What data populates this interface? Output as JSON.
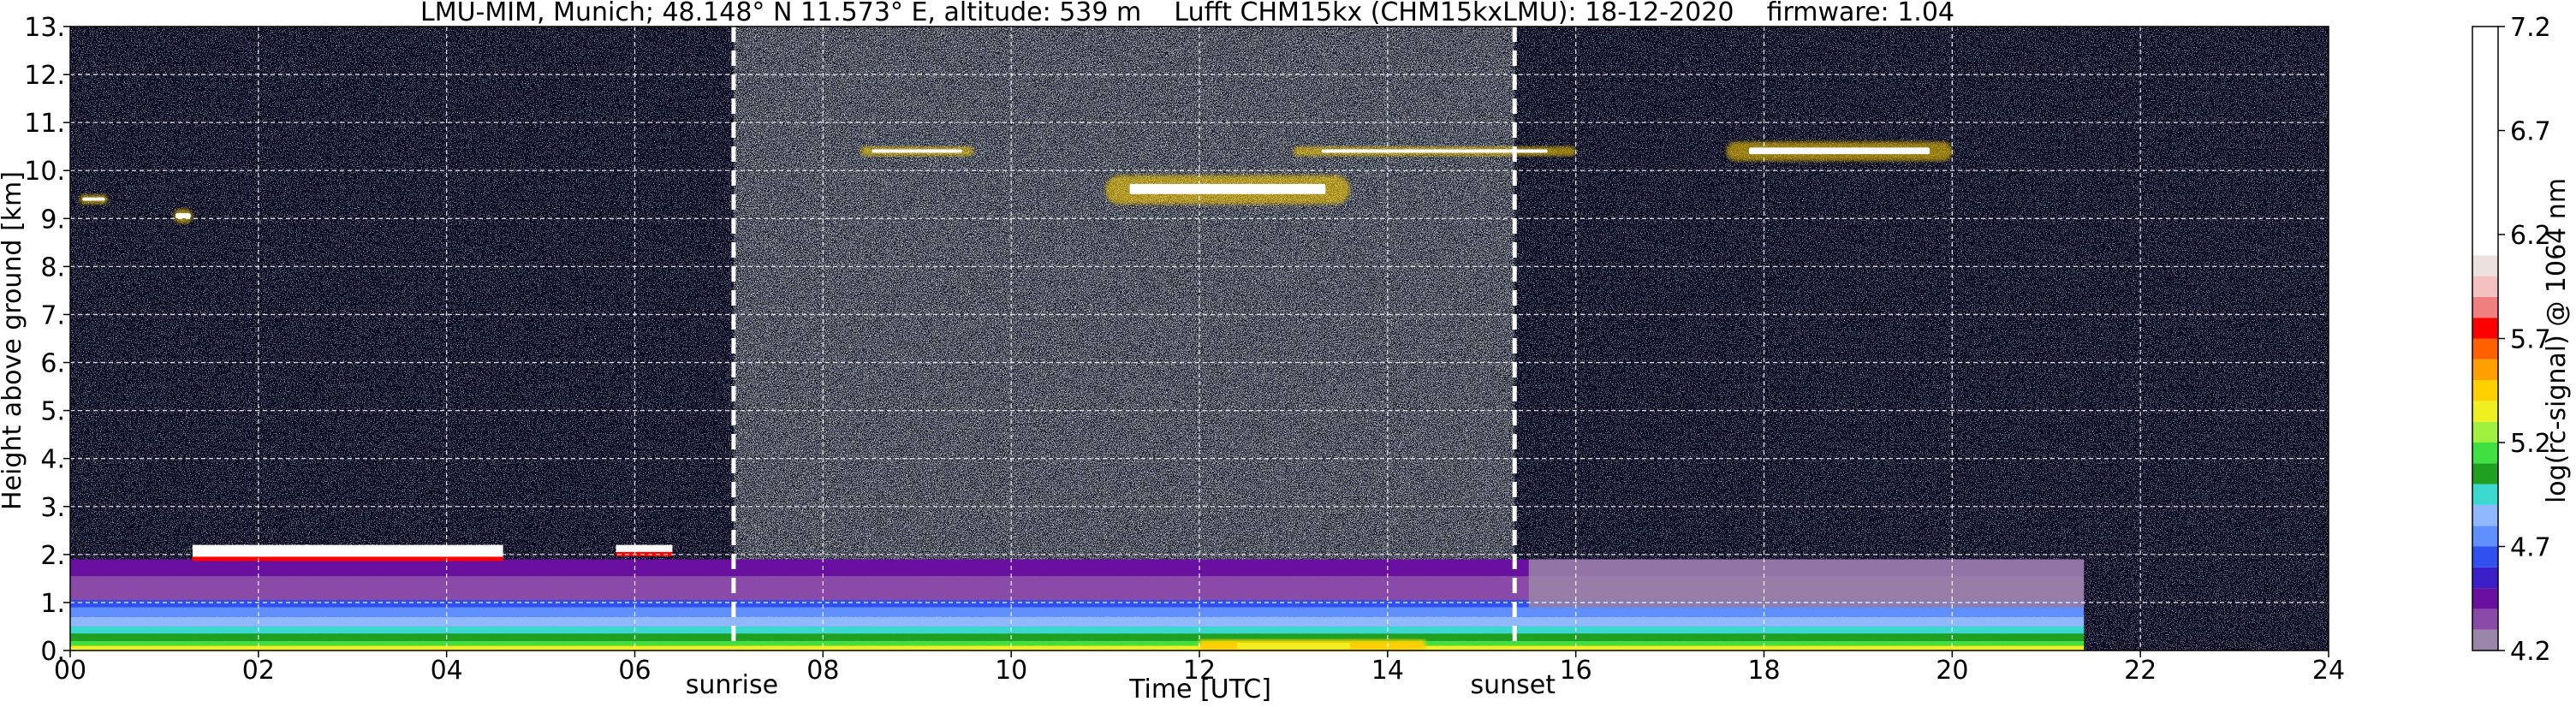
{
  "chart_data": {
    "type": "heatmap",
    "title": "LMU-MIM, Munich; 48.148° N 11.573° E, altitude: 539 m    Lufft CHM15kx (CHM15kxLMU): 18-12-2020    firmware: 1.04",
    "xlabel": "Time [UTC]",
    "ylabel": "Height above ground [km]",
    "x_range": [
      0,
      24
    ],
    "y_range": [
      0,
      13
    ],
    "x_ticks": [
      0,
      2,
      4,
      6,
      8,
      10,
      12,
      14,
      16,
      18,
      20,
      22,
      24
    ],
    "x_tick_labels": [
      "00",
      "02",
      "04",
      "06",
      "08",
      "10",
      "12",
      "14",
      "16",
      "18",
      "20",
      "22",
      "24"
    ],
    "y_ticks": [
      0,
      1,
      2,
      3,
      4,
      5,
      6,
      7,
      8,
      9,
      10,
      11,
      12,
      13
    ],
    "y_tick_labels": [
      "0.",
      "1.",
      "2.",
      "3.",
      "4.",
      "5.",
      "6.",
      "7.",
      "8.",
      "9.",
      "10.",
      "11.",
      "12.",
      "13."
    ],
    "grid": true,
    "events": [
      {
        "label": "sunrise",
        "time": 7.05
      },
      {
        "label": "sunset",
        "time": 15.35
      }
    ],
    "colorbar": {
      "label": "log(rc-signal) @ 1064 nm",
      "range": [
        4.2,
        7.2
      ],
      "ticks": [
        4.2,
        4.7,
        5.2,
        5.7,
        6.2,
        6.7,
        7.2
      ],
      "tick_labels": [
        "4.2",
        "4.7",
        "5.2",
        "5.7",
        "6.2",
        "6.7",
        "7.2"
      ],
      "bands": [
        {
          "from": 4.2,
          "to": 4.3,
          "color": "#9a86a8"
        },
        {
          "from": 4.3,
          "to": 4.4,
          "color": "#8a4aa8"
        },
        {
          "from": 4.4,
          "to": 4.5,
          "color": "#6a10a0"
        },
        {
          "from": 4.5,
          "to": 4.6,
          "color": "#3a20c8"
        },
        {
          "from": 4.6,
          "to": 4.7,
          "color": "#3050f0"
        },
        {
          "from": 4.7,
          "to": 4.8,
          "color": "#6090ff"
        },
        {
          "from": 4.8,
          "to": 4.9,
          "color": "#90b8ff"
        },
        {
          "from": 4.9,
          "to": 5.0,
          "color": "#3cd8d0"
        },
        {
          "from": 5.0,
          "to": 5.1,
          "color": "#20a020"
        },
        {
          "from": 5.1,
          "to": 5.2,
          "color": "#40e040"
        },
        {
          "from": 5.2,
          "to": 5.3,
          "color": "#a0f040"
        },
        {
          "from": 5.3,
          "to": 5.4,
          "color": "#f0f020"
        },
        {
          "from": 5.4,
          "to": 5.5,
          "color": "#ffd000"
        },
        {
          "from": 5.5,
          "to": 5.6,
          "color": "#ffa000"
        },
        {
          "from": 5.6,
          "to": 5.7,
          "color": "#ff6000"
        },
        {
          "from": 5.7,
          "to": 5.8,
          "color": "#ff0000"
        },
        {
          "from": 5.8,
          "to": 5.9,
          "color": "#f08080"
        },
        {
          "from": 5.9,
          "to": 6.0,
          "color": "#f4c0c0"
        },
        {
          "from": 6.0,
          "to": 6.1,
          "color": "#ece0e0"
        },
        {
          "from": 6.1,
          "to": 7.2,
          "color": "#ffffff"
        }
      ]
    },
    "background_color": "#07071c",
    "structures": [
      {
        "feature": "boundary-layer",
        "t_start": 0,
        "t_end": 21.4,
        "h_start": 0,
        "h_end": 1.9
      },
      {
        "feature": "residual-layer",
        "t_start": 15.5,
        "t_end": 21.4,
        "h_start": 0.9,
        "h_end": 1.9
      },
      {
        "feature": "low-cloud",
        "t_start": 1.3,
        "t_end": 4.6,
        "h_start": 1.9,
        "h_end": 2.2
      },
      {
        "feature": "low-cloud",
        "t_start": 5.8,
        "t_end": 6.4,
        "h_start": 2.0,
        "h_end": 2.2
      },
      {
        "feature": "cirrus",
        "t_start": 8.4,
        "t_end": 9.6,
        "h_start": 10.3,
        "h_end": 10.5
      },
      {
        "feature": "cirrus",
        "t_start": 11.0,
        "t_end": 13.6,
        "h_start": 9.3,
        "h_end": 9.9
      },
      {
        "feature": "cirrus",
        "t_start": 13.0,
        "t_end": 16.0,
        "h_start": 10.3,
        "h_end": 10.5
      },
      {
        "feature": "cirrus",
        "t_start": 17.6,
        "t_end": 20.0,
        "h_start": 10.2,
        "h_end": 10.6
      },
      {
        "feature": "cirrus",
        "t_start": 0.1,
        "t_end": 0.4,
        "h_start": 9.3,
        "h_end": 9.5
      },
      {
        "feature": "cirrus",
        "t_start": 1.1,
        "t_end": 1.3,
        "h_start": 8.9,
        "h_end": 9.2
      }
    ]
  }
}
